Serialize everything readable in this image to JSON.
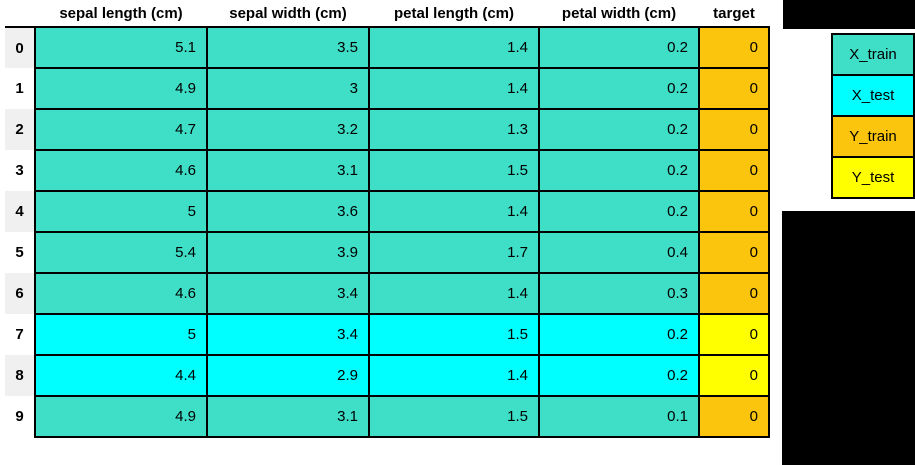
{
  "colors": {
    "x_train_fill": "#3EDEC7",
    "x_test_fill": "#00FFFF",
    "y_train_fill": "#FBC40D",
    "y_test_fill": "#FFFF00",
    "cell_border": "#000000",
    "index_stripe": "#F0F0F0",
    "mask_fill": "#000000",
    "background": "#FFFFFF"
  },
  "table": {
    "index_header": "",
    "columns": [
      "sepal length (cm)",
      "sepal width (cm)",
      "petal length (cm)",
      "petal width (cm)",
      "target"
    ],
    "rows": [
      {
        "index": "0",
        "cells": [
          "5.1",
          "3.5",
          "1.4",
          "0.2",
          "0"
        ],
        "split": "train"
      },
      {
        "index": "1",
        "cells": [
          "4.9",
          "3",
          "1.4",
          "0.2",
          "0"
        ],
        "split": "train"
      },
      {
        "index": "2",
        "cells": [
          "4.7",
          "3.2",
          "1.3",
          "0.2",
          "0"
        ],
        "split": "train"
      },
      {
        "index": "3",
        "cells": [
          "4.6",
          "3.1",
          "1.5",
          "0.2",
          "0"
        ],
        "split": "train"
      },
      {
        "index": "4",
        "cells": [
          "5",
          "3.6",
          "1.4",
          "0.2",
          "0"
        ],
        "split": "train"
      },
      {
        "index": "5",
        "cells": [
          "5.4",
          "3.9",
          "1.7",
          "0.4",
          "0"
        ],
        "split": "train"
      },
      {
        "index": "6",
        "cells": [
          "4.6",
          "3.4",
          "1.4",
          "0.3",
          "0"
        ],
        "split": "train"
      },
      {
        "index": "7",
        "cells": [
          "5",
          "3.4",
          "1.5",
          "0.2",
          "0"
        ],
        "split": "test"
      },
      {
        "index": "8",
        "cells": [
          "4.4",
          "2.9",
          "1.4",
          "0.2",
          "0"
        ],
        "split": "test"
      },
      {
        "index": "9",
        "cells": [
          "4.9",
          "3.1",
          "1.5",
          "0.1",
          "0"
        ],
        "split": "train"
      }
    ]
  },
  "legend": {
    "items": [
      {
        "label": "X_train",
        "color": "#3EDEC7"
      },
      {
        "label": "X_test",
        "color": "#00FFFF"
      },
      {
        "label": "Y_train",
        "color": "#FBC40D"
      },
      {
        "label": "Y_test",
        "color": "#FFFF00"
      }
    ]
  },
  "chart_data": {
    "type": "table",
    "columns": [
      "index",
      "sepal length (cm)",
      "sepal width (cm)",
      "petal length (cm)",
      "petal width (cm)",
      "target"
    ],
    "rows": [
      [
        0,
        5.1,
        3.5,
        1.4,
        0.2,
        0
      ],
      [
        1,
        4.9,
        3,
        1.4,
        0.2,
        0
      ],
      [
        2,
        4.7,
        3.2,
        1.3,
        0.2,
        0
      ],
      [
        3,
        4.6,
        3.1,
        1.5,
        0.2,
        0
      ],
      [
        4,
        5,
        3.6,
        1.4,
        0.2,
        0
      ],
      [
        5,
        5.4,
        3.9,
        1.7,
        0.4,
        0
      ],
      [
        6,
        4.6,
        3.4,
        1.4,
        0.3,
        0
      ],
      [
        7,
        5,
        3.4,
        1.5,
        0.2,
        0
      ],
      [
        8,
        4.4,
        2.9,
        1.4,
        0.2,
        0
      ],
      [
        9,
        4.9,
        3.1,
        1.5,
        0.1,
        0
      ]
    ],
    "feature_split": [
      "X_train",
      "X_train",
      "X_train",
      "X_train",
      "X_train",
      "X_train",
      "X_train",
      "X_test",
      "X_test",
      "X_train"
    ],
    "target_split": [
      "Y_train",
      "Y_train",
      "Y_train",
      "Y_train",
      "Y_train",
      "Y_train",
      "Y_train",
      "Y_test",
      "Y_test",
      "Y_train"
    ],
    "legend_entries": [
      "X_train",
      "X_test",
      "Y_train",
      "Y_test"
    ],
    "legend_position": "right",
    "grid": true
  }
}
